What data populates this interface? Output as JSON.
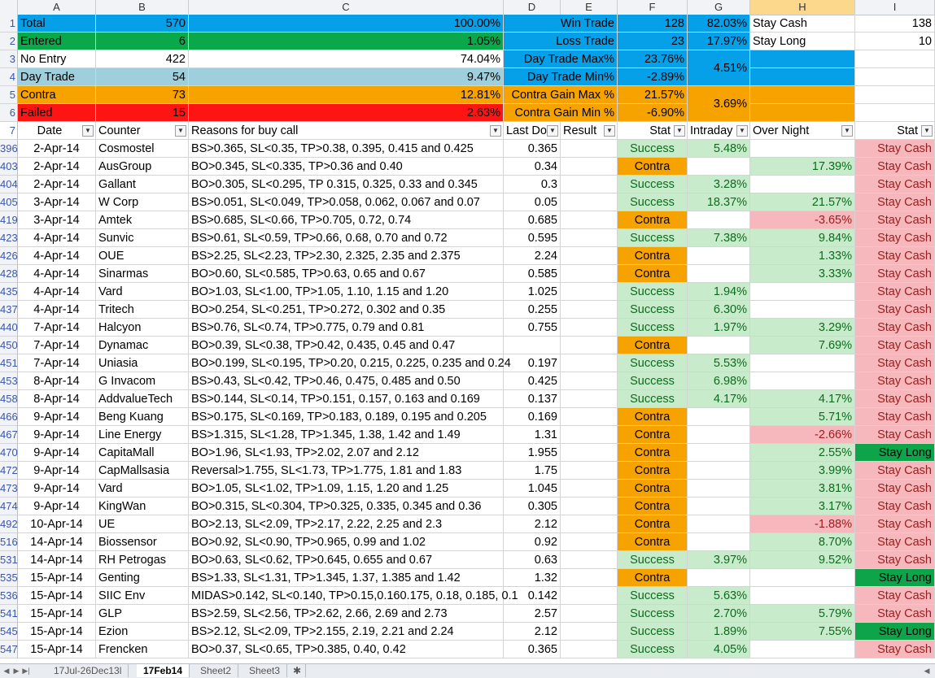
{
  "columns": [
    "A",
    "B",
    "C",
    "D",
    "E",
    "F",
    "G",
    "H",
    "I"
  ],
  "selected_column": "H",
  "summary": {
    "rows": [
      {
        "num": "1",
        "a": "Total",
        "b": "570",
        "c": "100.00%",
        "d": "Win Trade",
        "f": "128",
        "g": "82.03%",
        "h": "Stay Cash",
        "i": "138"
      },
      {
        "num": "2",
        "a": "Entered",
        "b": "6",
        "c": "1.05%",
        "d": "Loss Trade",
        "f": "23",
        "g": "17.97%",
        "h": "Stay Long",
        "i": "10"
      },
      {
        "num": "3",
        "a": "No Entry",
        "b": "422",
        "c": "74.04%",
        "d": "Day Trade Max%",
        "f": "23.76%",
        "h": "",
        "i": ""
      },
      {
        "num": "4",
        "a": "Day Trade",
        "b": "54",
        "c": "9.47%",
        "d": "Day Trade Min%",
        "f": "-2.89%",
        "h": "",
        "i": ""
      },
      {
        "num": "5",
        "a": "Contra",
        "b": "73",
        "c": "12.81%",
        "d": "Contra Gain Max %",
        "f": "21.57%",
        "h": "",
        "i": ""
      },
      {
        "num": "6",
        "a": "Failed",
        "b": "15",
        "c": "2.63%",
        "d": "Contra Gain Min %",
        "f": "-6.90%",
        "h": "",
        "i": ""
      }
    ],
    "day_trade_avg": "4.51%",
    "contra_avg": "3.69%"
  },
  "header_row": {
    "num": "7",
    "date": "Date",
    "counter": "Counter",
    "reasons": "Reasons for buy call",
    "last": "Last Do",
    "result": "Result",
    "stat": "Stat",
    "intraday": "Intraday",
    "overnight": "Over Night",
    "stat2": "Stat"
  },
  "rows": [
    {
      "num": "396",
      "date": "2-Apr-14",
      "counter": "Cosmostel",
      "reason": "BS>0.365, SL<0.35, TP>0.38, 0.395, 0.415 and 0.425",
      "last": "0.365",
      "stat": "Success",
      "intraday": "5.48%",
      "overnight": "",
      "stat2": "Stay Cash"
    },
    {
      "num": "403",
      "date": "2-Apr-14",
      "counter": "AusGroup",
      "reason": "BO>0.345, SL<0.335, TP>0.36 and 0.40",
      "last": "0.34",
      "stat": "Contra",
      "intraday": "",
      "overnight": "17.39%",
      "stat2": "Stay Cash"
    },
    {
      "num": "404",
      "date": "2-Apr-14",
      "counter": "Gallant",
      "reason": "BO>0.305, SL<0.295, TP 0.315, 0.325, 0.33 and 0.345",
      "last": "0.3",
      "stat": "Success",
      "intraday": "3.28%",
      "overnight": "",
      "stat2": "Stay Cash"
    },
    {
      "num": "405",
      "date": "3-Apr-14",
      "counter": "W Corp",
      "reason": "BS>0.051, SL<0.049, TP>0.058, 0.062, 0.067 and 0.07",
      "last": "0.05",
      "stat": "Success",
      "intraday": "18.37%",
      "overnight": "21.57%",
      "stat2": "Stay Cash"
    },
    {
      "num": "419",
      "date": "3-Apr-14",
      "counter": "Amtek",
      "reason": "BS>0.685, SL<0.66, TP>0.705, 0.72, 0.74",
      "last": "0.685",
      "stat": "Contra",
      "intraday": "",
      "overnight": "-3.65%",
      "stat2": "Stay Cash"
    },
    {
      "num": "423",
      "date": "4-Apr-14",
      "counter": "Sunvic",
      "reason": "BS>0.61, SL<0.59, TP>0.66, 0.68, 0.70 and 0.72",
      "last": "0.595",
      "stat": "Success",
      "intraday": "7.38%",
      "overnight": "9.84%",
      "stat2": "Stay Cash"
    },
    {
      "num": "426",
      "date": "4-Apr-14",
      "counter": "OUE",
      "reason": "BS>2.25, SL<2.23, TP>2.30, 2.325, 2.35 and 2.375",
      "last": "2.24",
      "stat": "Contra",
      "intraday": "",
      "overnight": "1.33%",
      "stat2": "Stay Cash"
    },
    {
      "num": "428",
      "date": "4-Apr-14",
      "counter": "Sinarmas",
      "reason": "BO>0.60, SL<0.585, TP>0.63, 0.65 and 0.67",
      "last": "0.585",
      "stat": "Contra",
      "intraday": "",
      "overnight": "3.33%",
      "stat2": "Stay Cash"
    },
    {
      "num": "435",
      "date": "4-Apr-14",
      "counter": "Vard",
      "reason": "BO>1.03, SL<1.00, TP>1.05, 1.10, 1.15 and 1.20",
      "last": "1.025",
      "stat": "Success",
      "intraday": "1.94%",
      "overnight": "",
      "stat2": "Stay Cash"
    },
    {
      "num": "437",
      "date": "4-Apr-14",
      "counter": "Tritech",
      "reason": " BO>0.254, SL<0.251, TP>0.272, 0.302 and 0.35",
      "last": "0.255",
      "stat": "Success",
      "intraday": "6.30%",
      "overnight": "",
      "stat2": "Stay Cash"
    },
    {
      "num": "440",
      "date": "7-Apr-14",
      "counter": "Halcyon",
      "reason": "BS>0.76, SL<0.74, TP>0.775, 0.79 and 0.81",
      "last": "0.755",
      "stat": "Success",
      "intraday": "1.97%",
      "overnight": "3.29%",
      "stat2": "Stay Cash"
    },
    {
      "num": "450",
      "date": "7-Apr-14",
      "counter": "Dynamac",
      "reason": "BO>0.39, SL<0.38, TP>0.42, 0.435, 0.45 and 0.47",
      "last": "",
      "stat": "Contra",
      "intraday": "",
      "overnight": "7.69%",
      "stat2": "Stay Cash"
    },
    {
      "num": "451",
      "date": "7-Apr-14",
      "counter": "Uniasia",
      "reason": "BO>0.199, SL<0.195, TP>0.20, 0.215, 0.225, 0.235 and 0.24",
      "last": "0.197",
      "stat": "Success",
      "intraday": "5.53%",
      "overnight": "",
      "stat2": "Stay Cash"
    },
    {
      "num": "453",
      "date": "8-Apr-14",
      "counter": "G Invacom",
      "reason": "BS>0.43, SL<0.42, TP>0.46, 0.475, 0.485 and 0.50",
      "last": "0.425",
      "stat": "Success",
      "intraday": "6.98%",
      "overnight": "",
      "stat2": "Stay Cash"
    },
    {
      "num": "458",
      "date": "8-Apr-14",
      "counter": "AddvalueTech",
      "reason": "BS>0.144, SL<0.14, TP>0.151, 0.157, 0.163 and 0.169",
      "last": "0.137",
      "stat": "Success",
      "intraday": "4.17%",
      "overnight": "4.17%",
      "stat2": "Stay Cash"
    },
    {
      "num": "466",
      "date": "9-Apr-14",
      "counter": "Beng Kuang",
      "reason": "BS>0.175, SL<0.169, TP>0.183, 0.189, 0.195 and 0.205",
      "last": "0.169",
      "stat": "Contra",
      "intraday": "",
      "overnight": "5.71%",
      "stat2": "Stay Cash"
    },
    {
      "num": "467",
      "date": "9-Apr-14",
      "counter": "Line Energy",
      "reason": "BS>1.315, SL<1.28, TP>1.345, 1.38, 1.42 and 1.49",
      "last": "1.31",
      "stat": "Contra",
      "intraday": "",
      "overnight": "-2.66%",
      "stat2": "Stay Cash"
    },
    {
      "num": "470",
      "date": "9-Apr-14",
      "counter": "CapitaMall",
      "reason": "BO>1.96, SL<1.93, TP>2.02, 2.07 and 2.12",
      "last": "1.955",
      "stat": "Contra",
      "intraday": "",
      "overnight": "2.55%",
      "stat2": "Stay Long"
    },
    {
      "num": "472",
      "date": "9-Apr-14",
      "counter": "CapMallsasia",
      "reason": "Reversal>1.755, SL<1.73, TP>1.775, 1.81 and 1.83",
      "last": "1.75",
      "stat": "Contra",
      "intraday": "",
      "overnight": "3.99%",
      "stat2": "Stay Cash"
    },
    {
      "num": "473",
      "date": "9-Apr-14",
      "counter": "Vard",
      "reason": "BO>1.05, SL<1.02, TP>1.09, 1.15, 1.20 and 1.25",
      "last": "1.045",
      "stat": "Contra",
      "intraday": "",
      "overnight": "3.81%",
      "stat2": "Stay Cash"
    },
    {
      "num": "474",
      "date": "9-Apr-14",
      "counter": "KingWan",
      "reason": "BO>0.315, SL<0.304, TP>0.325, 0.335, 0.345 and 0.36",
      "last": "0.305",
      "stat": "Contra",
      "intraday": "",
      "overnight": "3.17%",
      "stat2": "Stay Cash"
    },
    {
      "num": "492",
      "date": "10-Apr-14",
      "counter": "UE",
      "reason": "BO>2.13, SL<2.09, TP>2.17, 2.22, 2.25 and 2.3",
      "last": "2.12",
      "stat": "Contra",
      "intraday": "",
      "overnight": "-1.88%",
      "stat2": "Stay Cash"
    },
    {
      "num": "516",
      "date": "14-Apr-14",
      "counter": "Biossensor",
      "reason": "BO>0.92, SL<0.90, TP>0.965, 0.99 and 1.02",
      "last": "0.92",
      "stat": "Contra",
      "intraday": "",
      "overnight": "8.70%",
      "stat2": "Stay Cash"
    },
    {
      "num": "531",
      "date": "14-Apr-14",
      "counter": "RH Petrogas",
      "reason": "BO>0.63, SL<0.62, TP>0.645, 0.655 and 0.67",
      "last": "0.63",
      "stat": "Success",
      "intraday": "3.97%",
      "overnight": "9.52%",
      "stat2": "Stay Cash"
    },
    {
      "num": "535",
      "date": "15-Apr-14",
      "counter": "Genting",
      "reason": "BS>1.33, SL<1.31, TP>1.345, 1.37, 1.385 and 1.42",
      "last": "1.32",
      "stat": "Contra",
      "intraday": "",
      "overnight": "",
      "stat2": "Stay Long"
    },
    {
      "num": "536",
      "date": "15-Apr-14",
      "counter": "SIIC Env",
      "reason": "MIDAS>0.142, SL<0.140, TP>0.15,0.160.175, 0.18, 0.185, 0.1",
      "last": "0.142",
      "stat": "Success",
      "intraday": "5.63%",
      "overnight": "",
      "stat2": "Stay Cash"
    },
    {
      "num": "541",
      "date": "15-Apr-14",
      "counter": "GLP",
      "reason": "BS>2.59, SL<2.56, TP>2.62, 2.66, 2.69 and 2.73",
      "last": "2.57",
      "stat": "Success",
      "intraday": "2.70%",
      "overnight": "5.79%",
      "stat2": "Stay Cash"
    },
    {
      "num": "545",
      "date": "15-Apr-14",
      "counter": "Ezion",
      "reason": "BS>2.12, SL<2.09, TP>2.155, 2.19, 2.21 and 2.24",
      "last": "2.12",
      "stat": "Success",
      "intraday": "1.89%",
      "overnight": "7.55%",
      "stat2": "Stay Long"
    },
    {
      "num": "547",
      "date": "15-Apr-14",
      "counter": "Frencken",
      "reason": "BO>0.37, SL<0.65, TP>0.385, 0.40, 0.42",
      "last": "0.365",
      "stat": "Success",
      "intraday": "4.05%",
      "overnight": "",
      "stat2": "Stay Cash"
    }
  ],
  "sheet_tabs": [
    "17Jul-26Dec13l",
    "17Feb14",
    "Sheet2",
    "Sheet3"
  ],
  "active_tab": "17Feb14",
  "colors": {
    "total": "#05a0e8",
    "entered": "#0aa84a",
    "day_trade": "#9fcfdd",
    "contra": "#f6a300",
    "failed": "#ff1414",
    "success_bg": "#c8ebcc",
    "loss_bg": "#f6b8bd",
    "stay_long": "#0ea44a"
  }
}
